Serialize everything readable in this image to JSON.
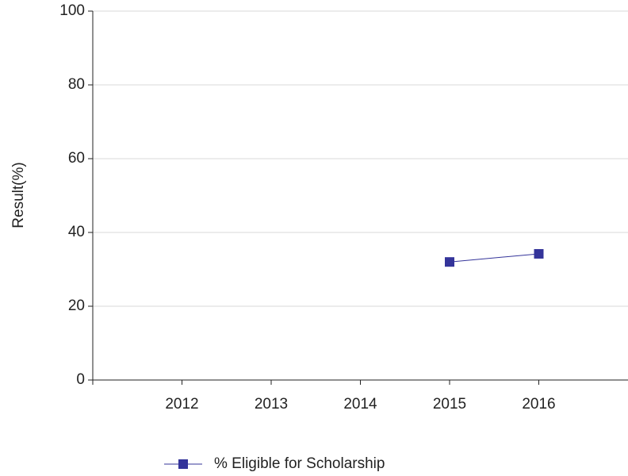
{
  "chart_data": {
    "type": "line",
    "y_label": "Result(%)",
    "categories": [
      "2012",
      "2013",
      "2014",
      "2015",
      "2016"
    ],
    "series": [
      {
        "name": "% Eligible for Scholarship",
        "color": "#34349a",
        "values": [
          null,
          null,
          null,
          32,
          34.2
        ]
      }
    ],
    "ylim": [
      0,
      100
    ],
    "yticks": [
      0,
      20,
      40,
      60,
      80,
      100
    ],
    "grid": true,
    "legend": "bottom"
  }
}
